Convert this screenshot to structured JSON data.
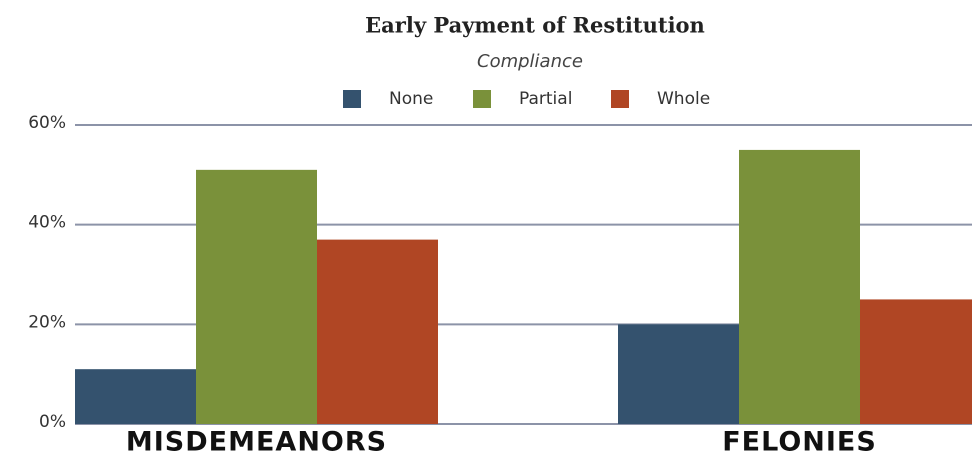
{
  "chart_data": {
    "type": "bar",
    "title": "Early Payment of Restitution",
    "subtitle": "Compliance",
    "categories": [
      "MISDEMEANORS",
      "FELONIES"
    ],
    "series": [
      {
        "name": "None",
        "color": "#34526e",
        "values": [
          11,
          20
        ]
      },
      {
        "name": "Partial",
        "color": "#7a913a",
        "values": [
          51,
          55
        ]
      },
      {
        "name": "Whole",
        "color": "#b04624",
        "values": [
          37,
          25
        ]
      }
    ],
    "ylim": [
      0,
      60
    ],
    "yticks": [
      {
        "value": 0,
        "label": "0%"
      },
      {
        "value": 20,
        "label": "20%"
      },
      {
        "value": 40,
        "label": "40%"
      },
      {
        "value": 60,
        "label": "60%"
      }
    ],
    "grid": true
  }
}
